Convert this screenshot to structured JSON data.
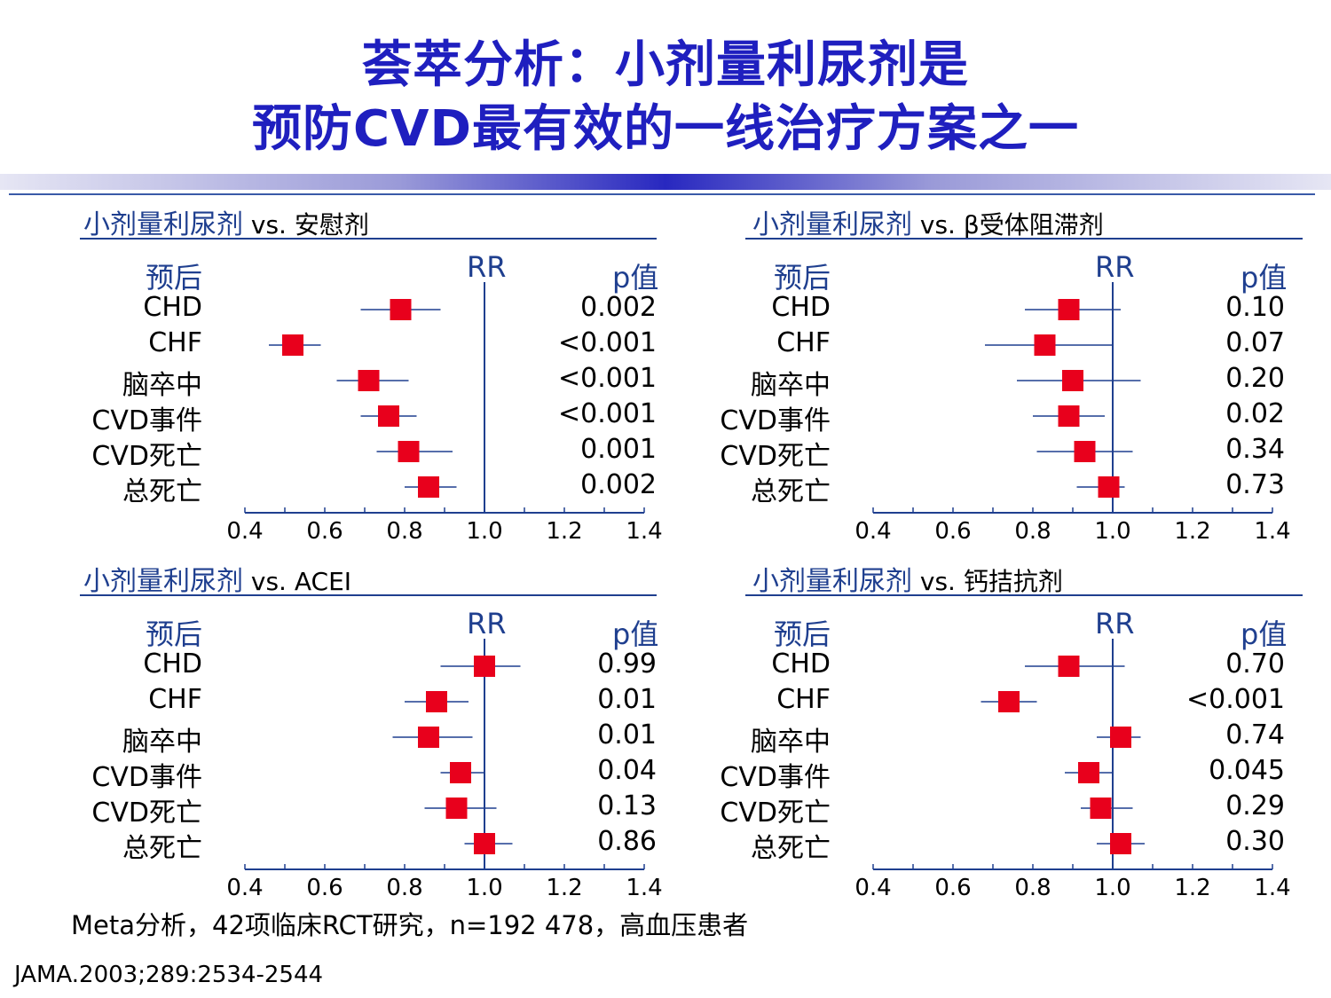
{
  "title_line1": "荟萃分析：小剂量利尿剂是",
  "title_line2": "预防CVD最有效的一线治疗方案之一",
  "chart_data": [
    {
      "type": "forest",
      "title_main": "小剂量利尿剂",
      "title_vs": "vs. 安慰剂",
      "header_outcome": "预后",
      "header_rr": "RR",
      "header_p": "p值",
      "x_ticks": [
        "0.4",
        "0.6",
        "0.8",
        "1.0",
        "1.2",
        "1.4"
      ],
      "xlim": [
        0.4,
        1.4
      ],
      "rows": [
        {
          "label": "CHD",
          "rr": 0.79,
          "lo": 0.69,
          "hi": 0.89,
          "p": "0.002"
        },
        {
          "label": "CHF",
          "rr": 0.52,
          "lo": 0.46,
          "hi": 0.59,
          "p": "<0.001"
        },
        {
          "label": "脑卒中",
          "rr": 0.71,
          "lo": 0.63,
          "hi": 0.81,
          "p": "<0.001"
        },
        {
          "label": "CVD事件",
          "rr": 0.76,
          "lo": 0.69,
          "hi": 0.83,
          "p": "<0.001"
        },
        {
          "label": "CVD死亡",
          "rr": 0.81,
          "lo": 0.73,
          "hi": 0.92,
          "p": "0.001"
        },
        {
          "label": "总死亡",
          "rr": 0.86,
          "lo": 0.8,
          "hi": 0.93,
          "p": "0.002"
        }
      ]
    },
    {
      "type": "forest",
      "title_main": "小剂量利尿剂",
      "title_vs": "vs. β受体阻滞剂",
      "header_outcome": "预后",
      "header_rr": "RR",
      "header_p": "p值",
      "x_ticks": [
        "0.4",
        "0.6",
        "0.8",
        "1.0",
        "1.2",
        "1.4"
      ],
      "xlim": [
        0.4,
        1.4
      ],
      "rows": [
        {
          "label": "CHD",
          "rr": 0.89,
          "lo": 0.78,
          "hi": 1.02,
          "p": "0.10"
        },
        {
          "label": "CHF",
          "rr": 0.83,
          "lo": 0.68,
          "hi": 1.0,
          "p": "0.07"
        },
        {
          "label": "脑卒中",
          "rr": 0.9,
          "lo": 0.76,
          "hi": 1.07,
          "p": "0.20"
        },
        {
          "label": "CVD事件",
          "rr": 0.89,
          "lo": 0.8,
          "hi": 0.98,
          "p": "0.02"
        },
        {
          "label": "CVD死亡",
          "rr": 0.93,
          "lo": 0.81,
          "hi": 1.05,
          "p": "0.34"
        },
        {
          "label": "总死亡",
          "rr": 0.99,
          "lo": 0.91,
          "hi": 1.03,
          "p": "0.73"
        }
      ]
    },
    {
      "type": "forest",
      "title_main": "小剂量利尿剂",
      "title_vs": "vs. ACEI",
      "header_outcome": "预后",
      "header_rr": "RR",
      "header_p": "p值",
      "x_ticks": [
        "0.4",
        "0.6",
        "0.8",
        "1.0",
        "1.2",
        "1.4"
      ],
      "xlim": [
        0.4,
        1.4
      ],
      "rows": [
        {
          "label": "CHD",
          "rr": 1.0,
          "lo": 0.89,
          "hi": 1.09,
          "p": "0.99"
        },
        {
          "label": "CHF",
          "rr": 0.88,
          "lo": 0.8,
          "hi": 0.96,
          "p": "0.01"
        },
        {
          "label": "脑卒中",
          "rr": 0.86,
          "lo": 0.77,
          "hi": 0.97,
          "p": "0.01"
        },
        {
          "label": "CVD事件",
          "rr": 0.94,
          "lo": 0.89,
          "hi": 1.0,
          "p": "0.04"
        },
        {
          "label": "CVD死亡",
          "rr": 0.93,
          "lo": 0.85,
          "hi": 1.03,
          "p": "0.13"
        },
        {
          "label": "总死亡",
          "rr": 1.0,
          "lo": 0.95,
          "hi": 1.07,
          "p": "0.86"
        }
      ]
    },
    {
      "type": "forest",
      "title_main": "小剂量利尿剂",
      "title_vs": "vs. 钙拮抗剂",
      "header_outcome": "预后",
      "header_rr": "RR",
      "header_p": "p值",
      "x_ticks": [
        "0.4",
        "0.6",
        "0.8",
        "1.0",
        "1.2",
        "1.4"
      ],
      "xlim": [
        0.4,
        1.4
      ],
      "rows": [
        {
          "label": "CHD",
          "rr": 0.89,
          "lo": 0.78,
          "hi": 1.03,
          "p": "0.70"
        },
        {
          "label": "CHF",
          "rr": 0.74,
          "lo": 0.67,
          "hi": 0.81,
          "p": "<0.001"
        },
        {
          "label": "脑卒中",
          "rr": 1.02,
          "lo": 0.96,
          "hi": 1.07,
          "p": "0.74"
        },
        {
          "label": "CVD事件",
          "rr": 0.94,
          "lo": 0.88,
          "hi": 1.0,
          "p": "0.045"
        },
        {
          "label": "CVD死亡",
          "rr": 0.97,
          "lo": 0.92,
          "hi": 1.05,
          "p": "0.29"
        },
        {
          "label": "总死亡",
          "rr": 1.02,
          "lo": 0.96,
          "hi": 1.08,
          "p": "0.30"
        }
      ]
    }
  ],
  "footnote": "Meta分析，42项临床RCT研究，n=192 478，高血压患者",
  "reference": "JAMA.2003;289:2534-2544"
}
